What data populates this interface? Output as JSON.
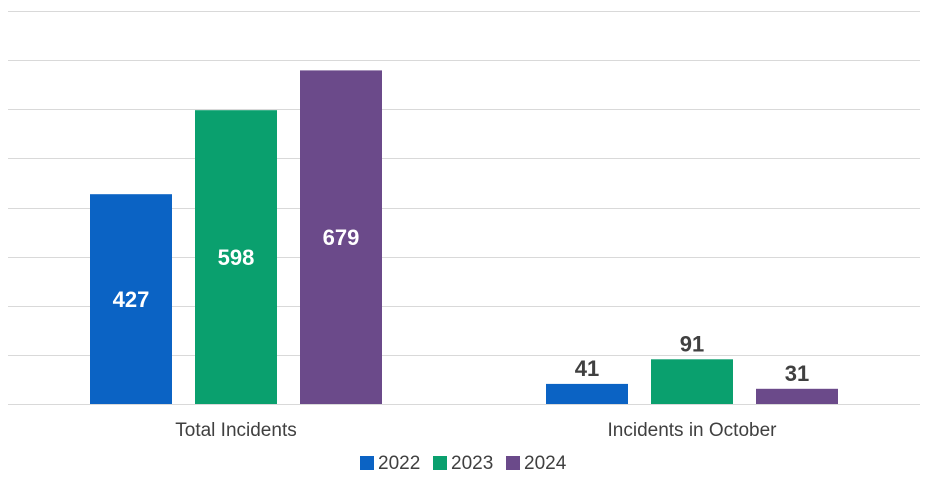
{
  "chart_data": {
    "type": "bar",
    "categories": [
      "Total Incidents",
      "Incidents in October"
    ],
    "series": [
      {
        "name": "2022",
        "values": [
          427,
          41
        ],
        "color": "#0b63c4"
      },
      {
        "name": "2023",
        "values": [
          598,
          91
        ],
        "color": "#0aa06e"
      },
      {
        "name": "2024",
        "values": [
          679,
          31
        ],
        "color": "#6b4a8a"
      }
    ],
    "title": "",
    "xlabel": "",
    "ylabel": "",
    "ylim": [
      0,
      800
    ],
    "grid": true,
    "legend_position": "bottom",
    "label_colors": {
      "inside": "#ffffff",
      "outside": "#404040"
    }
  }
}
